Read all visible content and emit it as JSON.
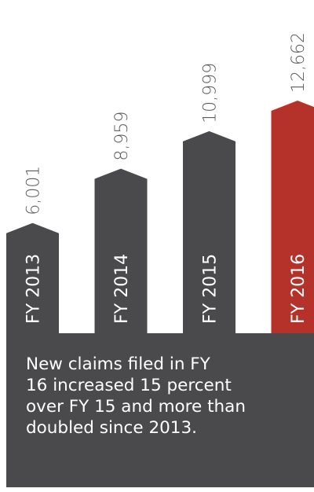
{
  "chart_data": {
    "type": "bar",
    "categories": [
      "FY 2013",
      "FY 2014",
      "FY 2015",
      "FY 2016"
    ],
    "values": [
      6001,
      8959,
      10999,
      12662
    ],
    "value_labels": [
      "6,001",
      "8,959",
      "10,999",
      "12,662"
    ],
    "colors": [
      "#4a4a4c",
      "#4a4a4c",
      "#4a4a4c",
      "#b5322a"
    ],
    "annotation_lines": [
      "New claims filed in FY",
      "16 increased 15 percent",
      "over FY 15 and more than",
      "doubled since 2013."
    ]
  }
}
